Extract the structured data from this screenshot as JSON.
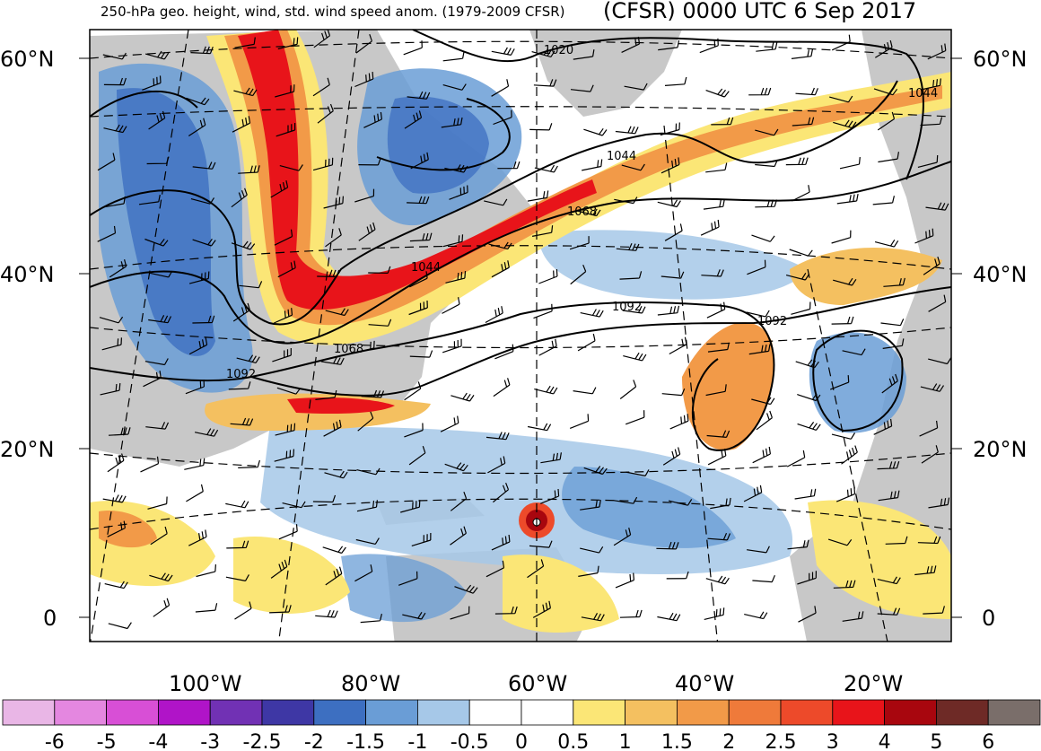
{
  "title": {
    "left": "250-hPa geo. height, wind, std. wind speed anom. (1979-2009 CFSR)",
    "right": "(CFSR) 0000 UTC 6 Sep 2017"
  },
  "latitudes": [
    {
      "label": "60°N",
      "value": 60
    },
    {
      "label": "40°N",
      "value": 40
    },
    {
      "label": "20°N",
      "value": 20
    },
    {
      "label": "0",
      "value": 0
    }
  ],
  "longitudes": [
    {
      "label": "100°W",
      "value": -100
    },
    {
      "label": "80°W",
      "value": -80
    },
    {
      "label": "60°W",
      "value": -60
    },
    {
      "label": "40°W",
      "value": -40
    },
    {
      "label": "20°W",
      "value": -20
    }
  ],
  "contour_labels": [
    "1020",
    "1044",
    "1044",
    "1068",
    "1044",
    "1092",
    "1092",
    "1068",
    "1092"
  ],
  "colorbar": {
    "labels": [
      "-6",
      "-5",
      "-4",
      "-3",
      "-2.5",
      "-2",
      "-1.5",
      "-1",
      "-0.5",
      "0",
      "0.5",
      "1",
      "1.5",
      "2",
      "2.5",
      "3",
      "4",
      "5",
      "6"
    ],
    "colors": [
      "#e9b6e6",
      "#e487e0",
      "#d84fd6",
      "#b014c8",
      "#7131b4",
      "#3e37a5",
      "#3d6fc1",
      "#6a9dd6",
      "#a6c8e8",
      "#ffffff",
      "#ffffff",
      "#fbe676",
      "#f4c060",
      "#f29a48",
      "#ef7a3a",
      "#ed4a2a",
      "#e8141a",
      "#a8060e",
      "#6e2a26",
      "#7a6e6a"
    ]
  },
  "colors": {
    "land": "#c8c8c8",
    "ocean": "#ffffff",
    "jet_core": "#e8141a",
    "contour": "#000000"
  }
}
